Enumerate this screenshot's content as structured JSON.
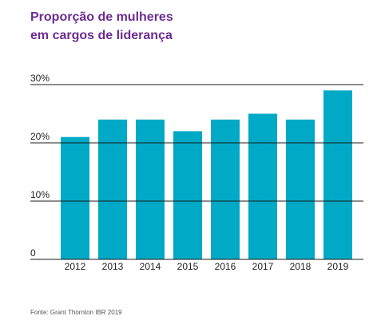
{
  "chart_data": {
    "type": "bar",
    "title_lines": [
      "Proporção de mulheres",
      "em cargos de liderança"
    ],
    "categories": [
      "2012",
      "2013",
      "2014",
      "2015",
      "2016",
      "2017",
      "2018",
      "2019"
    ],
    "values": [
      21,
      24,
      24,
      22,
      24,
      25,
      24,
      29
    ],
    "ylim": [
      0,
      30
    ],
    "yticks": [
      0,
      10,
      20,
      30
    ],
    "ytick_labels": [
      "0",
      "10%",
      "20%",
      "30%"
    ],
    "grid": true,
    "bar_color": "#00a9c6",
    "title_color": "#6b2c91"
  },
  "source": "Fonte: Grant Thornton IBR 2019"
}
